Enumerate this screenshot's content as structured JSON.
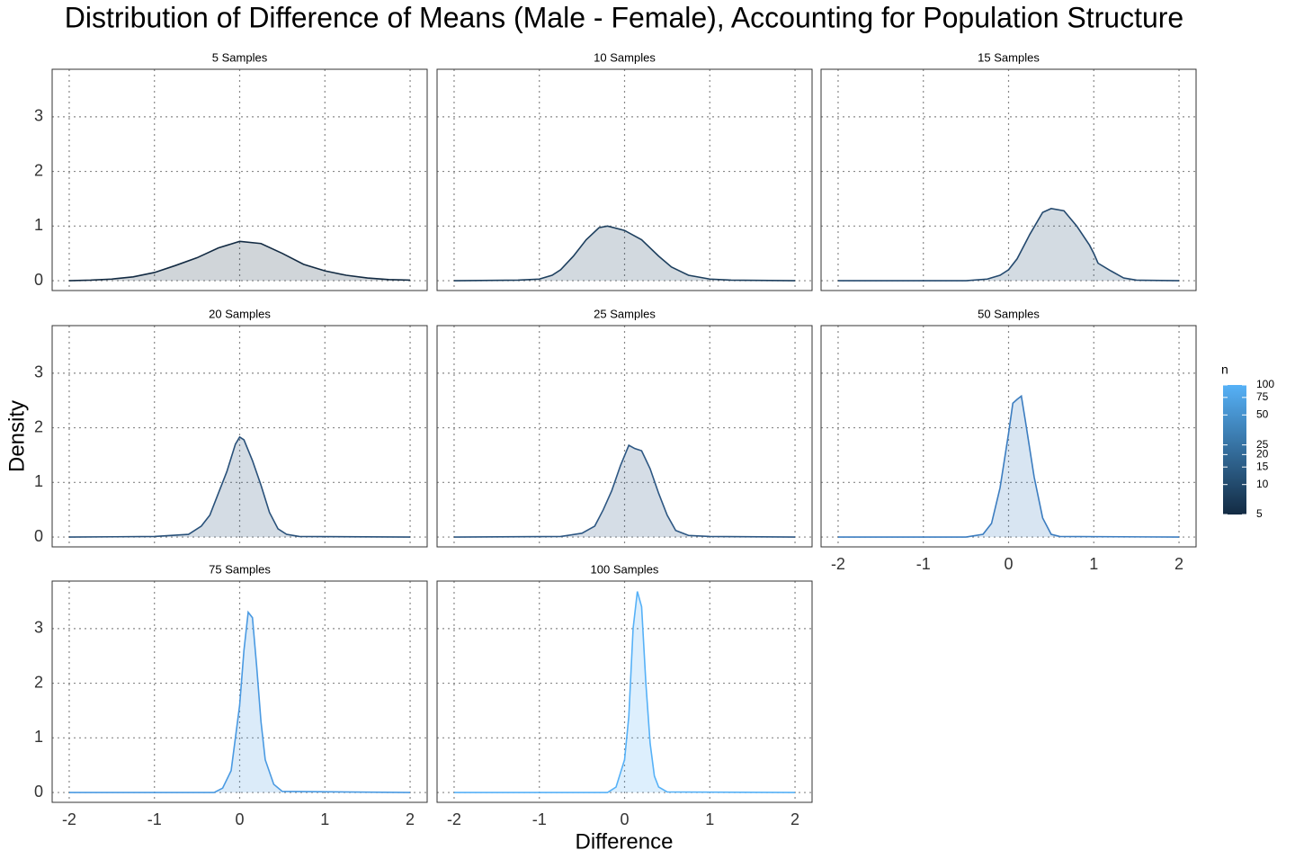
{
  "chart_data": {
    "type": "density",
    "title": "Distribution of Difference of Means (Male - Female), Accounting for Population Structure",
    "xlabel": "Difference",
    "ylabel": "Density",
    "xlim": [
      -2.2,
      2.2
    ],
    "ylim": [
      -0.18,
      3.87
    ],
    "xticks": [
      -2,
      -1,
      0,
      1,
      2
    ],
    "yticks": [
      0,
      1,
      2,
      3
    ],
    "grid": true,
    "legend": {
      "title": "n",
      "scale": "log",
      "range": [
        5,
        100
      ],
      "low_color": "#132B43",
      "high_color": "#56B1F7",
      "ticks": [
        5,
        10,
        15,
        20,
        25,
        50,
        75,
        100
      ]
    },
    "facets": [
      {
        "title": "5  Samples",
        "color": "#132B43",
        "x": [
          -2,
          -1.75,
          -1.5,
          -1.25,
          -1,
          -0.75,
          -0.5,
          -0.25,
          0,
          0.25,
          0.5,
          0.75,
          1,
          1.25,
          1.5,
          1.75,
          2
        ],
        "values": [
          0,
          0.01,
          0.03,
          0.07,
          0.15,
          0.28,
          0.42,
          0.6,
          0.72,
          0.68,
          0.5,
          0.3,
          0.18,
          0.1,
          0.05,
          0.02,
          0.01
        ]
      },
      {
        "title": "10  Samples",
        "color": "#1D3F5E",
        "x": [
          -2,
          -1.25,
          -1,
          -0.85,
          -0.75,
          -0.6,
          -0.45,
          -0.3,
          -0.2,
          0,
          0.2,
          0.4,
          0.55,
          0.75,
          1,
          1.25,
          2
        ],
        "values": [
          0,
          0.01,
          0.03,
          0.1,
          0.2,
          0.45,
          0.75,
          0.97,
          1.0,
          0.92,
          0.75,
          0.45,
          0.25,
          0.1,
          0.03,
          0.01,
          0
        ]
      },
      {
        "title": "15  Samples",
        "color": "#24496E",
        "x": [
          -2,
          -0.5,
          -0.25,
          -0.1,
          0,
          0.1,
          0.25,
          0.4,
          0.5,
          0.65,
          0.8,
          0.95,
          1,
          1.05,
          1.2,
          1.35,
          1.5,
          2
        ],
        "values": [
          0,
          0,
          0.03,
          0.1,
          0.2,
          0.4,
          0.85,
          1.25,
          1.32,
          1.28,
          1.0,
          0.65,
          0.5,
          0.32,
          0.18,
          0.05,
          0.01,
          0
        ]
      },
      {
        "title": "20  Samples",
        "color": "#29517A",
        "x": [
          -2,
          -1,
          -0.6,
          -0.45,
          -0.35,
          -0.25,
          -0.15,
          -0.05,
          0,
          0.05,
          0.15,
          0.25,
          0.35,
          0.45,
          0.55,
          0.7,
          2
        ],
        "values": [
          0,
          0.01,
          0.05,
          0.2,
          0.4,
          0.8,
          1.2,
          1.7,
          1.83,
          1.78,
          1.4,
          0.95,
          0.45,
          0.15,
          0.05,
          0.01,
          0
        ]
      },
      {
        "title": "25  Samples",
        "color": "#2D5783",
        "x": [
          -2,
          -0.75,
          -0.5,
          -0.35,
          -0.25,
          -0.15,
          -0.05,
          0.05,
          0.12,
          0.2,
          0.3,
          0.4,
          0.5,
          0.6,
          0.75,
          1,
          2
        ],
        "values": [
          0,
          0.01,
          0.07,
          0.2,
          0.5,
          0.85,
          1.3,
          1.68,
          1.62,
          1.58,
          1.25,
          0.8,
          0.4,
          0.12,
          0.03,
          0.01,
          0
        ]
      },
      {
        "title": "50  Samples",
        "color": "#3C7DC0",
        "x": [
          -2,
          -0.5,
          -0.3,
          -0.2,
          -0.1,
          0,
          0.05,
          0.1,
          0.15,
          0.2,
          0.3,
          0.4,
          0.5,
          0.6,
          2
        ],
        "values": [
          0,
          0,
          0.05,
          0.25,
          0.9,
          1.9,
          2.45,
          2.52,
          2.58,
          2.1,
          1.1,
          0.35,
          0.05,
          0.01,
          0
        ]
      },
      {
        "title": "75  Samples",
        "color": "#4A9AE2",
        "x": [
          -2,
          -0.3,
          -0.2,
          -0.1,
          0,
          0.05,
          0.1,
          0.15,
          0.2,
          0.25,
          0.3,
          0.4,
          0.5,
          2
        ],
        "values": [
          0,
          0,
          0.08,
          0.4,
          1.6,
          2.6,
          3.3,
          3.2,
          2.3,
          1.3,
          0.6,
          0.15,
          0.02,
          0
        ]
      },
      {
        "title": "100  Samples",
        "color": "#56B1F7",
        "x": [
          -2,
          -0.2,
          -0.1,
          0,
          0.05,
          0.1,
          0.15,
          0.2,
          0.25,
          0.3,
          0.35,
          0.4,
          0.5,
          2
        ],
        "values": [
          0,
          0,
          0.1,
          0.6,
          1.4,
          3.0,
          3.68,
          3.4,
          2.0,
          0.9,
          0.3,
          0.1,
          0.01,
          0
        ]
      }
    ]
  }
}
